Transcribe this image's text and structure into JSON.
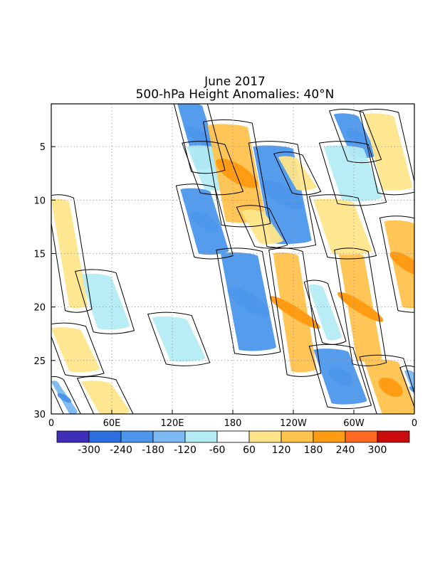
{
  "chart_data": {
    "type": "heatmap",
    "title": "June 2017",
    "subtitle": "500-hPa Height Anomalies: 40°N",
    "x_ticks": [
      {
        "label": "0",
        "lon": 0
      },
      {
        "label": "60E",
        "lon": 60
      },
      {
        "label": "120E",
        "lon": 120
      },
      {
        "label": "180",
        "lon": 180
      },
      {
        "label": "120W",
        "lon": 240
      },
      {
        "label": "60W",
        "lon": 300
      },
      {
        "label": "0",
        "lon": 360
      }
    ],
    "x_range": [
      0,
      360
    ],
    "y_ticks": [
      5,
      10,
      15,
      20,
      25,
      30
    ],
    "y_range": [
      1,
      30
    ],
    "grid": true,
    "colorbar": {
      "labels": [
        "-300",
        "-240",
        "-180",
        "-120",
        "-60",
        "60",
        "120",
        "180",
        "240",
        "300"
      ],
      "colors": [
        "#3f2fb8",
        "#2e6fe0",
        "#4c97ec",
        "#7cb8f2",
        "#b4ecf6",
        "#ffffff",
        "#ffe58a",
        "#ffc34e",
        "#ff9c14",
        "#ff6a20",
        "#c90b0b"
      ]
    },
    "anomaly_bands": [
      {
        "lon0": 125,
        "lon1": 150,
        "day0": 1,
        "day1": 7,
        "value": -200
      },
      {
        "lon0": 134,
        "lon1": 168,
        "day0": 5,
        "day1": 9,
        "value": -120
      },
      {
        "lon0": 128,
        "lon1": 158,
        "day0": 9,
        "day1": 15,
        "value": -200
      },
      {
        "lon0": 168,
        "lon1": 205,
        "day0": 15,
        "day1": 24,
        "value": -200
      },
      {
        "lon0": 200,
        "lon1": 240,
        "day0": 5,
        "day1": 14,
        "value": -200
      },
      {
        "lon0": 280,
        "lon1": 305,
        "day0": 2,
        "day1": 6,
        "value": -200
      },
      {
        "lon0": 270,
        "lon1": 310,
        "day0": 5,
        "day1": 10,
        "value": -100
      },
      {
        "lon0": 260,
        "lon1": 295,
        "day0": 24,
        "day1": 29,
        "value": -200
      },
      {
        "lon0": 28,
        "lon1": 60,
        "day0": 17,
        "day1": 22,
        "value": -90
      },
      {
        "lon0": 100,
        "lon1": 135,
        "day0": 21,
        "day1": 25,
        "value": -90
      },
      {
        "lon0": 255,
        "lon1": 270,
        "day0": 18,
        "day1": 23,
        "value": -90
      },
      {
        "lon0": 0,
        "lon1": 8,
        "day0": 27,
        "day1": 30,
        "value": -180
      },
      {
        "lon0": 350,
        "lon1": 360,
        "day0": 26,
        "day1": 30,
        "value": -180
      },
      {
        "lon0": 0,
        "lon1": 18,
        "day0": 10,
        "day1": 20,
        "value": 90
      },
      {
        "lon0": 155,
        "lon1": 195,
        "day0": 3,
        "day1": 12,
        "value": 150
      },
      {
        "lon0": 220,
        "lon1": 245,
        "day0": 15,
        "day1": 26,
        "value": 170
      },
      {
        "lon0": 285,
        "lon1": 310,
        "day0": 15,
        "day1": 25,
        "value": 160
      },
      {
        "lon0": 330,
        "lon1": 360,
        "day0": 12,
        "day1": 20,
        "value": 150
      },
      {
        "lon0": 310,
        "lon1": 340,
        "day0": 2,
        "day1": 9,
        "value": 90
      },
      {
        "lon0": 260,
        "lon1": 300,
        "day0": 10,
        "day1": 15,
        "value": 90
      },
      {
        "lon0": 310,
        "lon1": 345,
        "day0": 25,
        "day1": 30,
        "value": 150
      },
      {
        "lon0": 0,
        "lon1": 30,
        "day0": 22,
        "day1": 26,
        "value": 90
      },
      {
        "lon0": 30,
        "lon1": 60,
        "day0": 27,
        "day1": 30,
        "value": 90
      },
      {
        "lon0": 188,
        "lon1": 212,
        "day0": 11,
        "day1": 14,
        "value": 90
      },
      {
        "lon0": 225,
        "lon1": 245,
        "day0": 6,
        "day1": 9,
        "value": 90
      }
    ]
  }
}
